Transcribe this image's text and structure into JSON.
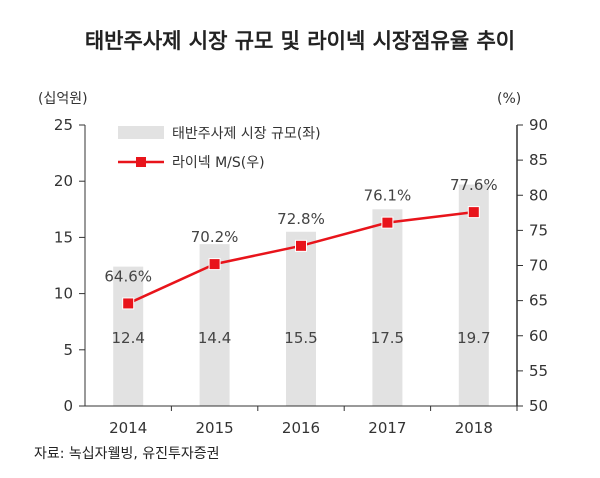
{
  "chart_data": {
    "type": "bar",
    "title": "태반주사제 시장 규모 및 라이넥 시장점유율 추이",
    "left_unit": "(십억원)",
    "right_unit": "(%)",
    "categories": [
      "2014",
      "2015",
      "2016",
      "2017",
      "2018"
    ],
    "y_left": {
      "min": 0,
      "max": 25,
      "ticks": [
        0,
        5,
        10,
        15,
        20,
        25
      ]
    },
    "y_right": {
      "min": 50,
      "max": 90,
      "ticks": [
        50,
        55,
        60,
        65,
        70,
        75,
        80,
        85,
        90
      ]
    },
    "series": [
      {
        "name": "태반주사제 시장 규모(좌)",
        "type": "bar",
        "axis": "left",
        "color": "#e2e2e2",
        "values": [
          12.4,
          14.4,
          15.5,
          17.5,
          19.7
        ],
        "labels": [
          "12.4",
          "14.4",
          "15.5",
          "17.5",
          "19.7"
        ]
      },
      {
        "name": "라이넥 M/S(우)",
        "type": "line",
        "axis": "right",
        "color": "#e8141b",
        "values": [
          64.6,
          70.2,
          72.8,
          76.1,
          77.6
        ],
        "labels": [
          "64.6%",
          "70.2%",
          "72.8%",
          "76.1%",
          "77.6%"
        ]
      }
    ],
    "source": "자료: 녹십자웰빙, 유진투자증권"
  }
}
